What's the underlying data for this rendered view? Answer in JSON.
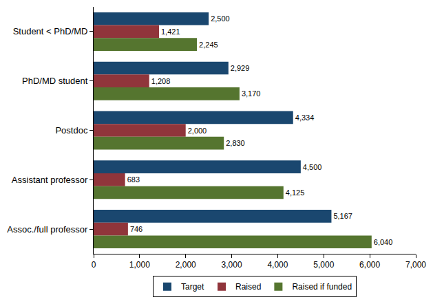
{
  "chart_data": {
    "type": "bar",
    "orientation": "horizontal",
    "categories": [
      "Student < PhD/MD",
      "PhD/MD student",
      "Postdoc",
      "Assistant professor",
      "Assoc./full professor"
    ],
    "series": [
      {
        "name": "Target",
        "color": "#1a476f",
        "values": [
          2500,
          2929,
          4334,
          4500,
          5167
        ],
        "value_labels": [
          "2,500",
          "2,929",
          "4,334",
          "4,500",
          "5,167"
        ]
      },
      {
        "name": "Raised",
        "color": "#90353b",
        "values": [
          1421,
          1208,
          2000,
          683,
          746
        ],
        "value_labels": [
          "1,421",
          "1,208",
          "2,000",
          "683",
          "746"
        ]
      },
      {
        "name": "Raised if funded",
        "color": "#55752f",
        "values": [
          2245,
          3170,
          2830,
          4125,
          6040
        ],
        "value_labels": [
          "2,245",
          "3,170",
          "2,830",
          "4,125",
          "6,040"
        ]
      }
    ],
    "xlim": [
      0,
      7000
    ],
    "xticks": [
      0,
      {
        "value": 1000,
        "label": "1,000"
      },
      {
        "value": 2000,
        "label": "2,000"
      },
      {
        "value": 3000,
        "label": "3,000"
      },
      {
        "value": 4000,
        "label": "4,000"
      },
      {
        "value": 5000,
        "label": "5,000"
      },
      {
        "value": 6000,
        "label": "6,000"
      },
      {
        "value": 7000,
        "label": "7,000"
      }
    ],
    "data_labels": true,
    "grid": false,
    "legend": "bottom"
  }
}
